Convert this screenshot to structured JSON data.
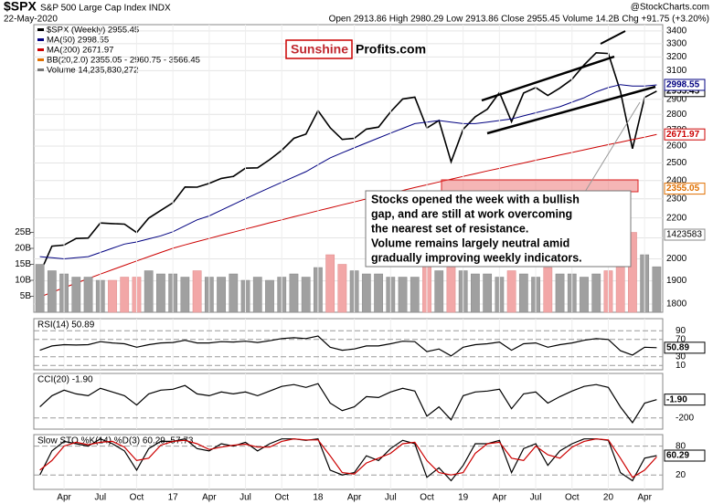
{
  "header": {
    "symbol": "$SPX",
    "name": "S&P 500 Large Cap Index INDX",
    "date": "22-May-2020",
    "ohlc": "Open 2913.86 High 2980.29 Low 2913.86 Close 2955.45 Volume 14.2B Chg +91.75 (+3.20%)",
    "credit": "@StockCharts.com"
  },
  "logo": {
    "left": "Sunshine",
    "right": "Profits.com"
  },
  "annotation": [
    "Stocks opened the week with a bullish",
    "gap, and are still at work overcoming",
    "the nearest set of resistance.",
    "Volume remains largely neutral amid",
    "gradually improving weekly indicators."
  ],
  "chart_data": [
    {
      "type": "line",
      "log": true,
      "legend": [
        "$SPX (Weekly) 2955.45",
        "MA(50) 2998.55",
        "MA(200) 2671.97",
        "BB(20,2.0) 2355.05 - 2960.75 - 3566.45",
        "Volume 14,235,830,272"
      ],
      "categories": [
        null,
        null,
        "Apr",
        null,
        null,
        "Jul",
        null,
        null,
        "Oct",
        null,
        null,
        "17",
        null,
        null,
        "Apr",
        null,
        null,
        "Jul",
        null,
        null,
        "Oct",
        null,
        null,
        "18",
        null,
        null,
        "Apr",
        null,
        null,
        "Jul",
        null,
        null,
        "Oct",
        null,
        null,
        "19",
        null,
        null,
        "Apr",
        null,
        null,
        "Jul",
        null,
        null,
        "Oct",
        null,
        null,
        "20",
        null,
        null,
        "Apr",
        null
      ],
      "ylim": [
        1766,
        3450
      ],
      "yticks": [
        3400,
        3300,
        3200,
        3100,
        2900,
        2800,
        2700,
        2600,
        2500,
        2400,
        2300,
        2200,
        2100,
        2000,
        1900,
        1800
      ],
      "y2lim": [
        0,
        90
      ],
      "y2ticks": [
        {
          "value": 5,
          "label": "5B"
        },
        {
          "value": 10,
          "label": "10B"
        },
        {
          "value": 15,
          "label": "15B"
        },
        {
          "value": 20,
          "label": "20B"
        },
        {
          "value": 25,
          "label": "25B"
        }
      ],
      "bb_lower": 2355.05,
      "volume_label": "1423583",
      "series": [
        {
          "name": "$SPX",
          "color": "#000000",
          "values": [
            1932,
            2060,
            2065,
            2097,
            2099,
            2174,
            2171,
            2168,
            2126,
            2199,
            2239,
            2279,
            2364,
            2363,
            2384,
            2412,
            2423,
            2470,
            2472,
            2519,
            2575,
            2648,
            2674,
            2824,
            2714,
            2641,
            2648,
            2705,
            2718,
            2816,
            2902,
            2914,
            2712,
            2760,
            2507,
            2704,
            2784,
            2834,
            2946,
            2752,
            2942,
            2980,
            2926,
            2977,
            3038,
            3141,
            3231,
            3226,
            2954,
            2585,
            2912,
            2955.45
          ]
        },
        {
          "name": "MA(50)",
          "color": "#000080",
          "values": [
            2010,
            2005,
            2000,
            2005,
            2010,
            2030,
            2050,
            2070,
            2080,
            2095,
            2110,
            2130,
            2160,
            2190,
            2210,
            2240,
            2270,
            2300,
            2330,
            2360,
            2390,
            2420,
            2450,
            2490,
            2530,
            2560,
            2590,
            2620,
            2650,
            2680,
            2710,
            2740,
            2750,
            2760,
            2750,
            2740,
            2740,
            2750,
            2760,
            2770,
            2790,
            2810,
            2830,
            2850,
            2880,
            2910,
            2950,
            2980,
            3000,
            2990,
            2990,
            2998.55
          ]
        },
        {
          "name": "MA(200)",
          "color": "#cc0000",
          "values": [
            1830,
            1850,
            1870,
            1890,
            1910,
            1930,
            1950,
            1970,
            1990,
            2010,
            2030,
            2050,
            2066,
            2082,
            2097,
            2113,
            2128,
            2144,
            2159,
            2175,
            2190,
            2206,
            2221,
            2237,
            2252,
            2268,
            2283,
            2299,
            2314,
            2330,
            2345,
            2361,
            2376,
            2392,
            2407,
            2423,
            2438,
            2454,
            2469,
            2485,
            2500,
            2516,
            2531,
            2547,
            2562,
            2578,
            2593,
            2609,
            2624,
            2640,
            2655,
            2671.97
          ]
        },
        {
          "name": "Volume",
          "type": "bar",
          "axis": "y2",
          "color": "#a0a0a0",
          "values": [
            15,
            13,
            12,
            11,
            11,
            10,
            10,
            11,
            11,
            13,
            12,
            12,
            11,
            13,
            11,
            11,
            12,
            10,
            11,
            10,
            11,
            12,
            11,
            14,
            18,
            15,
            13,
            12,
            12,
            11,
            11,
            11,
            16,
            13,
            17,
            13,
            12,
            12,
            11,
            13,
            12,
            11,
            14,
            12,
            12,
            11,
            12,
            13,
            20,
            25,
            18,
            14.24
          ]
        }
      ]
    },
    {
      "type": "line",
      "title": "RSI(14) 50.89",
      "ylim": [
        0,
        118
      ],
      "yticks": [
        90,
        70,
        30,
        10
      ],
      "values": [
        45,
        55,
        58,
        57,
        58,
        65,
        62,
        60,
        52,
        58,
        62,
        63,
        68,
        62,
        62,
        65,
        64,
        66,
        63,
        67,
        72,
        74,
        72,
        78,
        52,
        45,
        48,
        55,
        55,
        60,
        66,
        65,
        42,
        48,
        32,
        52,
        58,
        60,
        64,
        45,
        60,
        62,
        52,
        58,
        62,
        68,
        72,
        70,
        44,
        34,
        52,
        50.89
      ]
    },
    {
      "type": "line",
      "title": "CCI(20) -1.90",
      "last_label": "-1.90",
      "ylim": [
        -320,
        280
      ],
      "yticks": [
        -200
      ],
      "values": [
        -80,
        40,
        100,
        60,
        40,
        120,
        80,
        40,
        -60,
        60,
        100,
        110,
        150,
        60,
        40,
        80,
        60,
        80,
        40,
        90,
        140,
        160,
        130,
        170,
        -40,
        -120,
        -80,
        30,
        20,
        80,
        120,
        90,
        -180,
        -80,
        -220,
        40,
        80,
        90,
        110,
        -100,
        60,
        80,
        -40,
        30,
        90,
        140,
        160,
        130,
        -80,
        -250,
        -40,
        -1.9
      ]
    },
    {
      "type": "line",
      "title": "Slow STO %K(14) %D(3) 60.29, 57.73",
      "ylim": [
        -10,
        104
      ],
      "yticks": [
        80,
        20
      ],
      "series": [
        {
          "name": "%K",
          "color": "#000000",
          "values": [
            20,
            70,
            90,
            85,
            80,
            95,
            85,
            70,
            30,
            75,
            90,
            90,
            95,
            75,
            70,
            85,
            80,
            88,
            70,
            85,
            95,
            95,
            92,
            95,
            30,
            20,
            25,
            60,
            50,
            75,
            92,
            85,
            15,
            35,
            8,
            40,
            85,
            85,
            92,
            25,
            75,
            85,
            40,
            70,
            85,
            95,
            95,
            92,
            25,
            8,
            55,
            60.29
          ]
        },
        {
          "name": "%D",
          "color": "#cc0000",
          "values": [
            30,
            50,
            80,
            88,
            83,
            88,
            90,
            78,
            50,
            55,
            82,
            90,
            92,
            85,
            73,
            78,
            82,
            84,
            78,
            78,
            90,
            95,
            93,
            93,
            60,
            25,
            22,
            45,
            55,
            65,
            85,
            88,
            50,
            25,
            20,
            25,
            65,
            85,
            88,
            55,
            50,
            80,
            62,
            55,
            78,
            90,
            95,
            93,
            55,
            15,
            30,
            57.73
          ]
        }
      ]
    }
  ]
}
